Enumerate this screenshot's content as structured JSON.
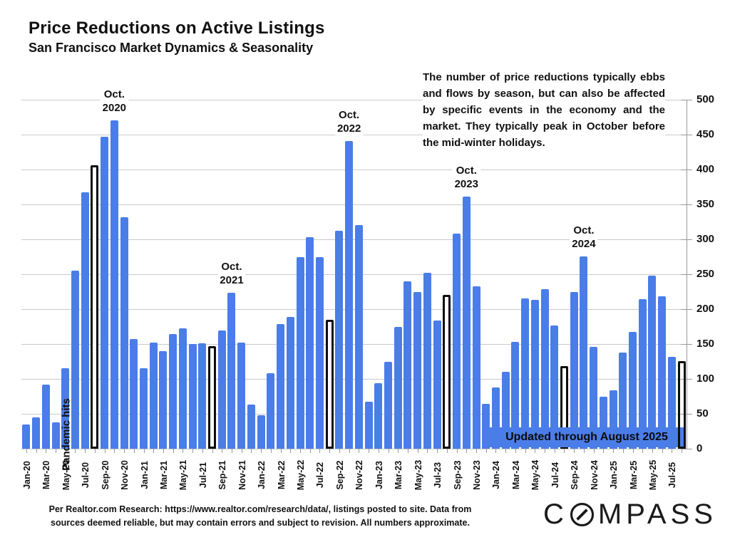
{
  "header": {
    "title": "Price Reductions on Active Listings",
    "subtitle": "San Francisco Market Dynamics & Seasonality"
  },
  "commentary": "The number of price reductions typically ebbs and flows by season, but can also be affected by specific events in the economy and the market. They typically peak in October before the mid-winter holidays.",
  "badge": {
    "label": "Updated through August 2025"
  },
  "pandemic_annotation": "Pandemic hits",
  "footer": {
    "line1": "Per Realtor.com Research:  https://www.realtor.com/research/data/, listings posted to site. Data from",
    "line2": "sources deemed reliable, but may contain errors and subject to revision. All numbers approximate."
  },
  "logo": {
    "first_letter": "C",
    "rest_letters": "MPASS"
  },
  "colors": {
    "bar_blue": "#4a7de8",
    "august_outline": "#0d0d0d",
    "gridline": "#cbcbcb",
    "axis_gray": "#9a9a9a",
    "text": "#111111"
  },
  "chart_data": {
    "type": "bar",
    "title": "Price Reductions on Active Listings",
    "xlabel": "",
    "ylabel": "",
    "ylim": [
      0,
      500
    ],
    "ytick_step": 50,
    "ytick_labels": [
      "0",
      "50",
      "100",
      "150",
      "200",
      "250",
      "300",
      "350",
      "400",
      "450",
      "500"
    ],
    "grid": true,
    "legend_position": "none",
    "x_tick_label_every": 2,
    "categories": [
      "Jan-20",
      "Feb-20",
      "Mar-20",
      "Apr-20",
      "May-20",
      "Jun-20",
      "Jul-20",
      "Aug-20",
      "Sep-20",
      "Oct-20",
      "Nov-20",
      "Dec-20",
      "Jan-21",
      "Feb-21",
      "Mar-21",
      "Apr-21",
      "May-21",
      "Jun-21",
      "Jul-21",
      "Aug-21",
      "Sep-21",
      "Oct-21",
      "Nov-21",
      "Dec-21",
      "Jan-22",
      "Feb-22",
      "Mar-22",
      "Apr-22",
      "May-22",
      "Jun-22",
      "Jul-22",
      "Aug-22",
      "Sep-22",
      "Oct-22",
      "Nov-22",
      "Dec-22",
      "Jan-23",
      "Feb-23",
      "Mar-23",
      "Apr-23",
      "May-23",
      "Jun-23",
      "Jul-23",
      "Aug-23",
      "Sep-23",
      "Oct-23",
      "Nov-23",
      "Dec-23",
      "Jan-24",
      "Feb-24",
      "Mar-24",
      "Apr-24",
      "May-24",
      "Jun-24",
      "Jul-24",
      "Aug-24",
      "Sep-24",
      "Oct-24",
      "Nov-24",
      "Dec-24",
      "Jan-25",
      "Feb-25",
      "Mar-25",
      "Apr-25",
      "May-25",
      "Jun-25",
      "Jul-25",
      "Aug-25"
    ],
    "values": [
      35,
      45,
      92,
      38,
      115,
      255,
      367,
      406,
      447,
      470,
      332,
      157,
      115,
      152,
      140,
      164,
      172,
      150,
      151,
      147,
      169,
      223,
      152,
      63,
      48,
      108,
      179,
      189,
      274,
      303,
      274,
      185,
      312,
      441,
      320,
      67,
      94,
      124,
      174,
      240,
      225,
      252,
      184,
      220,
      308,
      361,
      233,
      64,
      88,
      110,
      153,
      215,
      213,
      229,
      177,
      118,
      225,
      276,
      146,
      74,
      84,
      138,
      167,
      214,
      248,
      218,
      132,
      126
    ],
    "highlighted_august_indices": [
      7,
      19,
      31,
      43,
      55,
      67
    ],
    "annotations": [
      {
        "line1": "Oct.",
        "line2": "2020",
        "month_index": 9
      },
      {
        "line1": "Oct.",
        "line2": "2021",
        "month_index": 21
      },
      {
        "line1": "Oct.",
        "line2": "2022",
        "month_index": 33
      },
      {
        "line1": "Oct.",
        "line2": "2023",
        "month_index": 45
      },
      {
        "line1": "Oct.",
        "line2": "2024",
        "month_index": 57
      }
    ]
  }
}
